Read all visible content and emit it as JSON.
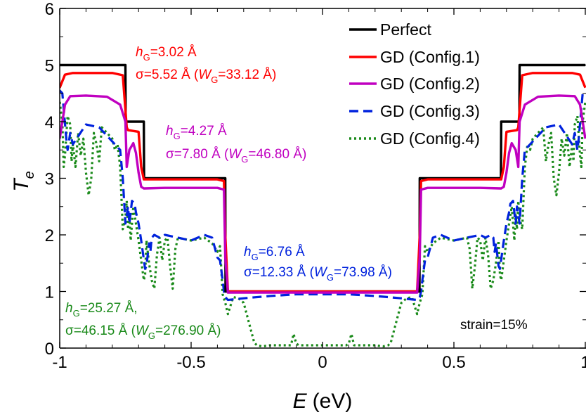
{
  "chart_data": {
    "type": "line",
    "xlabel": "E",
    "xunit": "(eV)",
    "ylabel": "T",
    "ylabel_sub": "e",
    "xlim": [
      -1,
      1
    ],
    "ylim": [
      0,
      6
    ],
    "xticks": [
      -1,
      -0.5,
      0,
      0.5,
      1
    ],
    "xtick_labels": [
      "-1",
      "-0.5",
      "0",
      "0.5",
      "1"
    ],
    "yticks": [
      0,
      1,
      2,
      3,
      4,
      5,
      6
    ],
    "ytick_labels": [
      "0",
      "1",
      "2",
      "3",
      "4",
      "5",
      "6"
    ],
    "grid": false,
    "legend_position": "top-right",
    "series": [
      {
        "name": "Perfect",
        "color": "#000000",
        "style": "solid",
        "x": [
          -1.0,
          -0.75,
          -0.749,
          -0.68,
          -0.679,
          -0.37,
          -0.369,
          0.369,
          0.37,
          0.679,
          0.68,
          0.749,
          0.75,
          1.0
        ],
        "y": [
          5,
          5,
          4,
          4,
          3,
          3,
          1,
          1,
          3,
          3,
          4,
          4,
          5,
          5
        ]
      },
      {
        "name": "GD (Config.1)",
        "color": "#ff0000",
        "style": "solid",
        "x": [
          -1.0,
          -0.98,
          -0.95,
          -0.8,
          -0.76,
          -0.745,
          -0.74,
          -0.7,
          -0.69,
          -0.68,
          -0.6,
          -0.4,
          -0.375,
          -0.37,
          -0.36,
          0.36,
          0.37,
          0.375,
          0.4,
          0.6,
          0.68,
          0.69,
          0.7,
          0.74,
          0.745,
          0.76,
          0.8,
          0.95,
          0.98,
          1.0
        ],
        "y": [
          4.6,
          4.83,
          4.86,
          4.86,
          4.82,
          3.9,
          3.85,
          3.82,
          3.2,
          2.98,
          2.98,
          2.98,
          2.95,
          2.0,
          1.0,
          1.0,
          2.0,
          2.95,
          2.98,
          2.98,
          2.98,
          3.2,
          3.82,
          3.85,
          3.9,
          4.82,
          4.86,
          4.86,
          4.83,
          4.6
        ]
      },
      {
        "name": "GD (Config.2)",
        "color": "#c000c0",
        "style": "solid",
        "x": [
          -1.0,
          -0.98,
          -0.96,
          -0.9,
          -0.82,
          -0.77,
          -0.75,
          -0.745,
          -0.735,
          -0.72,
          -0.71,
          -0.7,
          -0.69,
          -0.68,
          -0.6,
          -0.4,
          -0.375,
          -0.37,
          -0.36,
          0.36,
          0.37,
          0.375,
          0.4,
          0.6,
          0.68,
          0.69,
          0.7,
          0.71,
          0.72,
          0.735,
          0.745,
          0.75,
          0.77,
          0.82,
          0.9,
          0.96,
          0.98,
          1.0
        ],
        "y": [
          3.7,
          4.3,
          4.45,
          4.46,
          4.44,
          4.3,
          4.0,
          3.2,
          3.5,
          3.62,
          3.45,
          3.1,
          2.85,
          2.82,
          2.83,
          2.83,
          2.8,
          1.6,
          0.98,
          0.98,
          1.6,
          2.8,
          2.83,
          2.83,
          2.82,
          2.85,
          3.1,
          3.45,
          3.62,
          3.5,
          3.2,
          4.0,
          4.3,
          4.44,
          4.46,
          4.45,
          4.3,
          3.7
        ]
      },
      {
        "name": "GD (Config.3)",
        "color": "#0022dd",
        "style": "dashed",
        "x": [
          -1.0,
          -0.99,
          -0.975,
          -0.97,
          -0.96,
          -0.95,
          -0.9,
          -0.85,
          -0.8,
          -0.77,
          -0.76,
          -0.75,
          -0.74,
          -0.735,
          -0.725,
          -0.715,
          -0.71,
          -0.7,
          -0.69,
          -0.675,
          -0.67,
          -0.66,
          -0.655,
          -0.65,
          -0.64,
          -0.62,
          -0.6,
          -0.55,
          -0.5,
          -0.45,
          -0.42,
          -0.4,
          -0.39,
          -0.38,
          -0.375,
          -0.37,
          -0.36,
          -0.3,
          -0.2,
          -0.1,
          0.0,
          0.1,
          0.2,
          0.3,
          0.36,
          0.37,
          0.375,
          0.38,
          0.39,
          0.4,
          0.42,
          0.45,
          0.5,
          0.55,
          0.6,
          0.62,
          0.64,
          0.65,
          0.655,
          0.66,
          0.67,
          0.675,
          0.69,
          0.7,
          0.71,
          0.715,
          0.725,
          0.735,
          0.74,
          0.75,
          0.76,
          0.77,
          0.8,
          0.85,
          0.9,
          0.95,
          0.96,
          0.97,
          0.975,
          0.99,
          1.0
        ],
        "y": [
          4.55,
          4.5,
          3.7,
          3.5,
          3.8,
          3.6,
          3.95,
          3.9,
          3.65,
          3.5,
          3.0,
          2.2,
          2.5,
          2.2,
          2.6,
          2.55,
          2.4,
          2.2,
          1.9,
          1.4,
          1.45,
          1.85,
          1.7,
          1.95,
          2.0,
          1.95,
          2.0,
          1.95,
          1.9,
          2.0,
          1.95,
          1.6,
          1.55,
          1.2,
          1.0,
          0.9,
          0.85,
          0.88,
          0.92,
          0.95,
          0.95,
          0.95,
          0.92,
          0.88,
          0.85,
          0.9,
          1.0,
          1.2,
          1.55,
          1.6,
          1.95,
          2.0,
          1.9,
          1.95,
          2.0,
          1.95,
          2.0,
          1.95,
          1.7,
          1.85,
          1.45,
          1.4,
          1.9,
          2.2,
          2.4,
          2.55,
          2.6,
          2.2,
          2.5,
          2.2,
          3.0,
          3.5,
          3.65,
          3.9,
          3.95,
          3.6,
          3.8,
          3.5,
          3.7,
          4.5,
          4.55
        ]
      },
      {
        "name": "GD (Config.4)",
        "color": "#1a8a1a",
        "style": "dotted",
        "x": [
          -1.0,
          -0.99,
          -0.985,
          -0.98,
          -0.97,
          -0.96,
          -0.955,
          -0.95,
          -0.94,
          -0.93,
          -0.92,
          -0.91,
          -0.9,
          -0.89,
          -0.88,
          -0.87,
          -0.86,
          -0.85,
          -0.84,
          -0.8,
          -0.79,
          -0.78,
          -0.77,
          -0.76,
          -0.75,
          -0.745,
          -0.74,
          -0.735,
          -0.73,
          -0.72,
          -0.71,
          -0.7,
          -0.69,
          -0.68,
          -0.675,
          -0.67,
          -0.66,
          -0.65,
          -0.64,
          -0.63,
          -0.62,
          -0.61,
          -0.6,
          -0.59,
          -0.58,
          -0.57,
          -0.56,
          -0.55,
          -0.5,
          -0.45,
          -0.42,
          -0.4,
          -0.39,
          -0.38,
          -0.37,
          -0.36,
          -0.34,
          -0.32,
          -0.3,
          -0.28,
          -0.26,
          -0.25,
          -0.23,
          -0.2,
          -0.12,
          -0.11,
          -0.1,
          -0.09,
          -0.08,
          0.0,
          0.08,
          0.09,
          0.1,
          0.11,
          0.12,
          0.2,
          0.23,
          0.25,
          0.26,
          0.28,
          0.3,
          0.32,
          0.34,
          0.36,
          0.37,
          0.38,
          0.39,
          0.4,
          0.42,
          0.45,
          0.5,
          0.55,
          0.56,
          0.57,
          0.58,
          0.59,
          0.6,
          0.61,
          0.62,
          0.63,
          0.64,
          0.65,
          0.66,
          0.67,
          0.675,
          0.68,
          0.69,
          0.7,
          0.71,
          0.72,
          0.73,
          0.735,
          0.74,
          0.745,
          0.75,
          0.76,
          0.77,
          0.78,
          0.79,
          0.8,
          0.84,
          0.85,
          0.86,
          0.87,
          0.88,
          0.89,
          0.9,
          0.91,
          0.92,
          0.93,
          0.94,
          0.95,
          0.955,
          0.96,
          0.97,
          0.98,
          0.985,
          0.99,
          1.0
        ],
        "y": [
          4.35,
          4.0,
          3.2,
          3.4,
          4.1,
          3.95,
          3.3,
          3.6,
          3.2,
          3.8,
          3.4,
          3.7,
          3.1,
          2.7,
          3.0,
          3.8,
          3.6,
          3.3,
          3.9,
          3.7,
          3.5,
          3.6,
          3.2,
          2.1,
          2.3,
          2.6,
          2.1,
          2.35,
          1.9,
          2.5,
          2.2,
          1.9,
          1.55,
          1.2,
          1.3,
          1.9,
          1.5,
          1.2,
          1.05,
          1.65,
          1.95,
          1.55,
          1.9,
          1.95,
          1.45,
          1.05,
          1.75,
          1.95,
          1.9,
          1.95,
          1.85,
          1.7,
          1.8,
          0.95,
          0.8,
          0.6,
          0.9,
          0.88,
          0.8,
          0.45,
          0.1,
          0.05,
          0.03,
          0.05,
          0.05,
          0.25,
          0.08,
          0.05,
          0.05,
          0.05,
          0.05,
          0.05,
          0.08,
          0.25,
          0.05,
          0.05,
          0.03,
          0.05,
          0.1,
          0.45,
          0.8,
          0.88,
          0.9,
          0.6,
          0.8,
          0.95,
          1.8,
          1.7,
          1.85,
          1.95,
          1.9,
          1.95,
          1.75,
          1.05,
          1.45,
          1.95,
          1.9,
          1.55,
          1.95,
          1.65,
          1.05,
          1.2,
          1.5,
          1.9,
          1.3,
          1.2,
          1.55,
          1.9,
          2.2,
          2.5,
          1.9,
          2.35,
          2.1,
          2.6,
          2.3,
          2.1,
          3.2,
          3.6,
          3.5,
          3.7,
          3.9,
          3.3,
          3.6,
          3.8,
          3.0,
          2.7,
          3.1,
          3.7,
          3.4,
          3.8,
          3.2,
          3.6,
          3.3,
          3.95,
          4.1,
          3.4,
          3.2,
          4.0,
          4.35
        ]
      }
    ],
    "annotations": [
      {
        "id": "config1",
        "color": "#ff0000",
        "line1_pre": "h",
        "line1_sub": "G",
        "line1_post": "=3.02 Å",
        "line2_pre": "σ=5.52 Å (",
        "line2_ital": "W",
        "line2_sub": "G",
        "line2_post": "=33.12 Å)"
      },
      {
        "id": "config2",
        "color": "#c000c0",
        "line1_pre": "h",
        "line1_sub": "G",
        "line1_post": "=4.27 Å",
        "line2_pre": "σ=7.80 Å (",
        "line2_ital": "W",
        "line2_sub": "G",
        "line2_post": "=46.80 Å)"
      },
      {
        "id": "config3",
        "color": "#0022dd",
        "line1_pre": "h",
        "line1_sub": "G",
        "line1_post": "=6.76 Å",
        "line2_pre": "σ=12.33 Å (",
        "line2_ital": "W",
        "line2_sub": "G",
        "line2_post": "=73.98 Å)"
      },
      {
        "id": "config4",
        "color": "#1a8a1a",
        "line1_pre": "h",
        "line1_sub": "G",
        "line1_post": "=25.27 Å,",
        "line2_pre": "σ=46.15 Å (",
        "line2_ital": "W",
        "line2_sub": "G",
        "line2_post": "=276.90 Å)"
      }
    ],
    "strain_label": "strain=15%"
  }
}
